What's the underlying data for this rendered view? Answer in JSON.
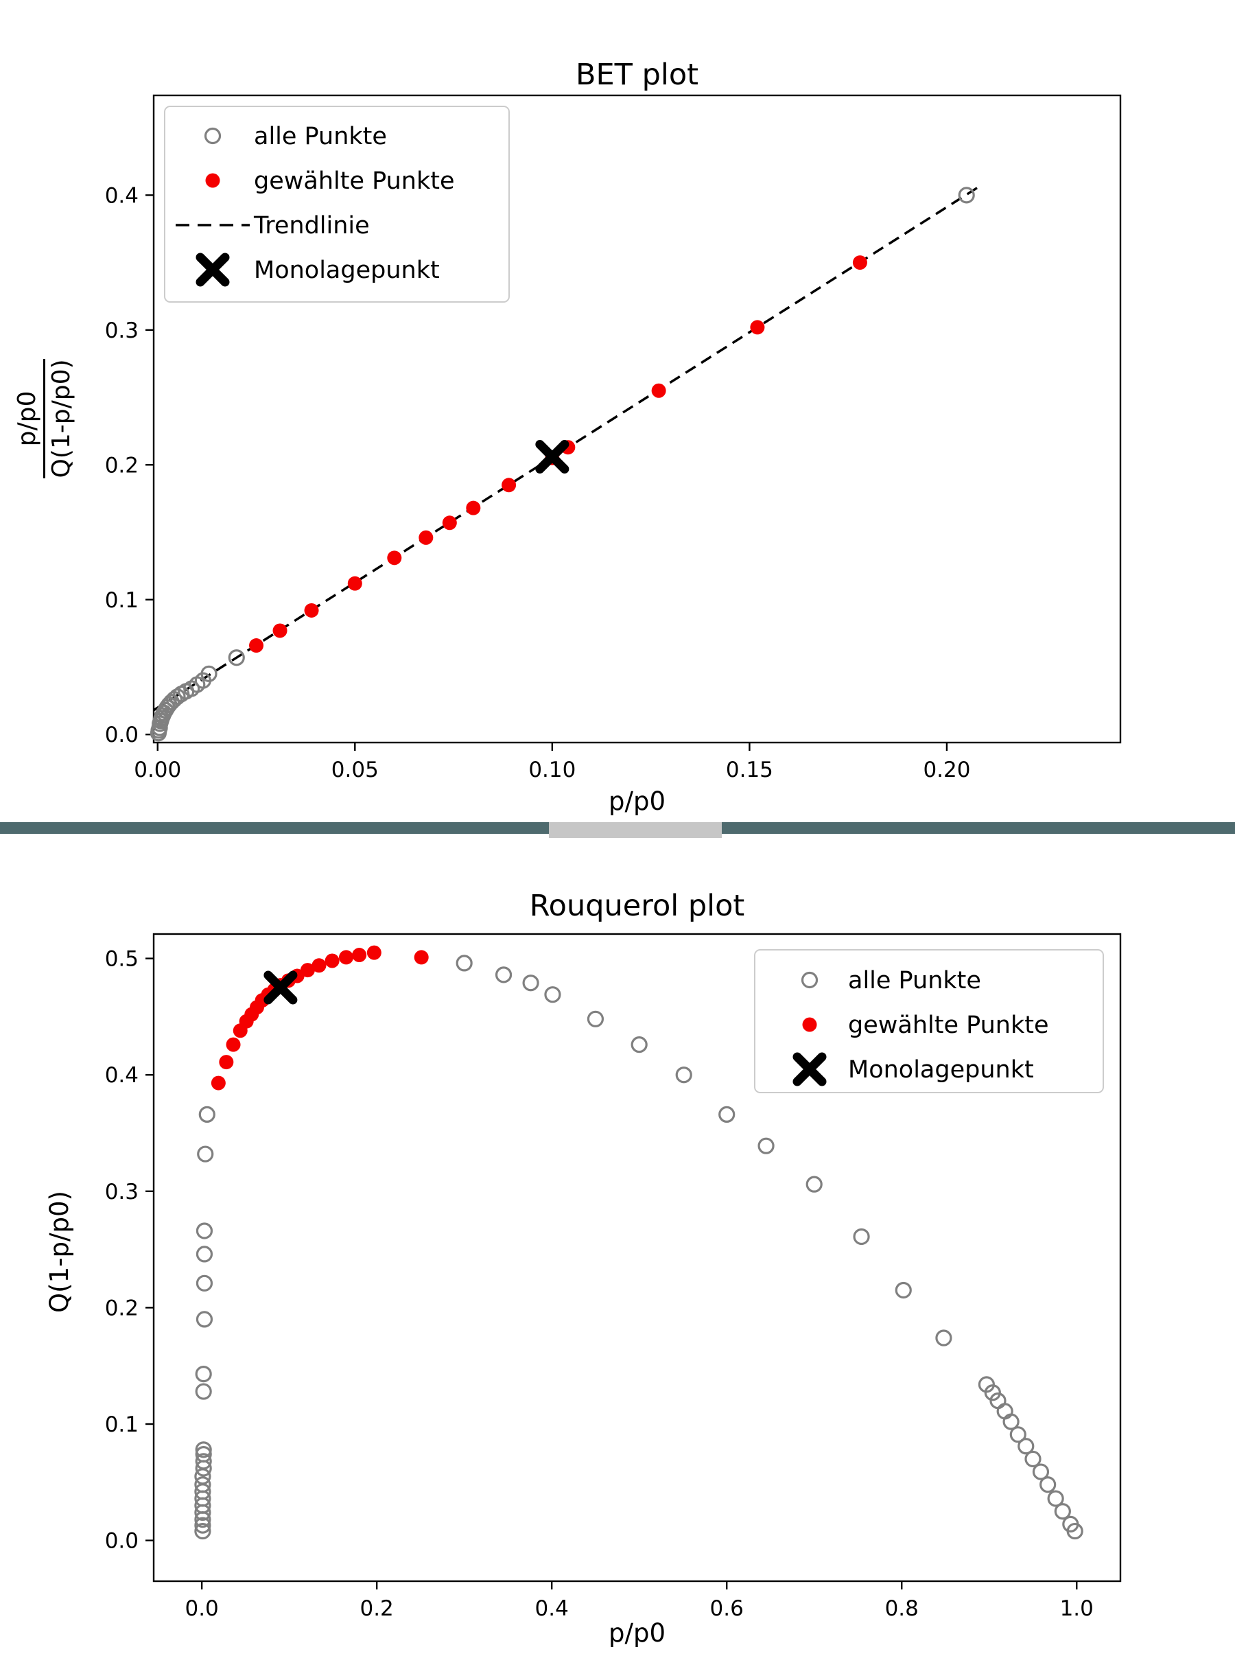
{
  "page": {
    "background": "#ffffff",
    "text_color": "#000000"
  },
  "divider": {
    "color": "#4e6a6e",
    "handle_color": "#c6c6c6"
  },
  "chart_data": [
    {
      "type": "scatter",
      "title": "BET plot",
      "xlabel": "p/p0",
      "ylabel": {
        "numerator": "p/p0",
        "denominator": "Q(1-p/p0)"
      },
      "xlim": [
        -0.001,
        0.244
      ],
      "ylim": [
        -0.006,
        0.474
      ],
      "xticks": [
        "0.00",
        "0.05",
        "0.10",
        "0.15",
        "0.20"
      ],
      "xtick_values": [
        0,
        0.05,
        0.1,
        0.15,
        0.2
      ],
      "yticks": [
        "0.0",
        "0.1",
        "0.2",
        "0.3",
        "0.4"
      ],
      "ytick_values": [
        0,
        0.1,
        0.2,
        0.3,
        0.4
      ],
      "grid": false,
      "legend_position": "upper-left",
      "series": [
        {
          "name": "alle Punkte",
          "marker": "open-circle",
          "color": "#808080",
          "points": [
            [
              0.0002,
              0.001
            ],
            [
              0.0003,
              0.003
            ],
            [
              0.0005,
              0.005
            ],
            [
              0.0006,
              0.008
            ],
            [
              0.0008,
              0.01
            ],
            [
              0.001,
              0.012
            ],
            [
              0.0013,
              0.014
            ],
            [
              0.0016,
              0.016
            ],
            [
              0.002,
              0.018
            ],
            [
              0.0024,
              0.02
            ],
            [
              0.0029,
              0.022
            ],
            [
              0.0035,
              0.024
            ],
            [
              0.0042,
              0.026
            ],
            [
              0.005,
              0.028
            ],
            [
              0.006,
              0.03
            ],
            [
              0.0072,
              0.032
            ],
            [
              0.0086,
              0.034
            ],
            [
              0.01,
              0.037
            ],
            [
              0.0115,
              0.04
            ],
            [
              0.013,
              0.045
            ],
            [
              0.02,
              0.057
            ],
            [
              0.205,
              0.4
            ]
          ]
        },
        {
          "name": "gewählte Punkte",
          "marker": "filled-circle",
          "color": "#f40000",
          "points": [
            [
              0.025,
              0.066
            ],
            [
              0.031,
              0.077
            ],
            [
              0.039,
              0.092
            ],
            [
              0.05,
              0.112
            ],
            [
              0.06,
              0.131
            ],
            [
              0.068,
              0.146
            ],
            [
              0.074,
              0.157
            ],
            [
              0.08,
              0.168
            ],
            [
              0.089,
              0.185
            ],
            [
              0.1,
              0.205
            ],
            [
              0.104,
              0.213
            ],
            [
              0.127,
              0.255
            ],
            [
              0.152,
              0.302
            ],
            [
              0.178,
              0.35
            ]
          ]
        },
        {
          "name": "Trendlinie",
          "marker": "dashed-line",
          "color": "#000000",
          "points": [
            [
              -0.001,
              0.018
            ],
            [
              0.208,
              0.406
            ]
          ]
        },
        {
          "name": "Monolagepunkt",
          "marker": "x-cross",
          "color": "#000000",
          "points": [
            [
              0.1,
              0.206
            ]
          ]
        }
      ]
    },
    {
      "type": "scatter",
      "title": "Rouquerol plot",
      "xlabel": "p/p0",
      "ylabel": {
        "text": "Q(1-p/p0)"
      },
      "xlim": [
        -0.055,
        1.05
      ],
      "ylim": [
        -0.035,
        0.521
      ],
      "xticks": [
        "0.0",
        "0.2",
        "0.4",
        "0.6",
        "0.8",
        "1.0"
      ],
      "xtick_values": [
        0,
        0.2,
        0.4,
        0.6,
        0.8,
        1.0
      ],
      "yticks": [
        "0.0",
        "0.1",
        "0.2",
        "0.3",
        "0.4",
        "0.5"
      ],
      "ytick_values": [
        0,
        0.1,
        0.2,
        0.3,
        0.4,
        0.5
      ],
      "grid": false,
      "legend_position": "upper-right",
      "series": [
        {
          "name": "alle Punkte",
          "marker": "open-circle",
          "color": "#808080",
          "points": [
            [
              0.001,
              0.008
            ],
            [
              0.001,
              0.013
            ],
            [
              0.001,
              0.018
            ],
            [
              0.001,
              0.024
            ],
            [
              0.001,
              0.03
            ],
            [
              0.001,
              0.036
            ],
            [
              0.001,
              0.042
            ],
            [
              0.001,
              0.048
            ],
            [
              0.001,
              0.055
            ],
            [
              0.002,
              0.062
            ],
            [
              0.002,
              0.068
            ],
            [
              0.002,
              0.074
            ],
            [
              0.002,
              0.078
            ],
            [
              0.002,
              0.128
            ],
            [
              0.002,
              0.143
            ],
            [
              0.003,
              0.19
            ],
            [
              0.003,
              0.221
            ],
            [
              0.003,
              0.246
            ],
            [
              0.003,
              0.266
            ],
            [
              0.004,
              0.332
            ],
            [
              0.006,
              0.366
            ],
            [
              0.3,
              0.496
            ],
            [
              0.345,
              0.486
            ],
            [
              0.376,
              0.479
            ],
            [
              0.401,
              0.469
            ],
            [
              0.45,
              0.448
            ],
            [
              0.5,
              0.426
            ],
            [
              0.551,
              0.4
            ],
            [
              0.6,
              0.366
            ],
            [
              0.645,
              0.339
            ],
            [
              0.7,
              0.306
            ],
            [
              0.754,
              0.261
            ],
            [
              0.802,
              0.215
            ],
            [
              0.848,
              0.174
            ],
            [
              0.897,
              0.134
            ],
            [
              0.904,
              0.127
            ],
            [
              0.91,
              0.12
            ],
            [
              0.918,
              0.111
            ],
            [
              0.925,
              0.102
            ],
            [
              0.933,
              0.091
            ],
            [
              0.942,
              0.081
            ],
            [
              0.95,
              0.07
            ],
            [
              0.959,
              0.059
            ],
            [
              0.967,
              0.048
            ],
            [
              0.976,
              0.036
            ],
            [
              0.984,
              0.025
            ],
            [
              0.993,
              0.014
            ],
            [
              0.998,
              0.008
            ]
          ]
        },
        {
          "name": "gewählte Punkte",
          "marker": "filled-circle",
          "color": "#f40000",
          "points": [
            [
              0.019,
              0.393
            ],
            [
              0.028,
              0.411
            ],
            [
              0.036,
              0.426
            ],
            [
              0.044,
              0.438
            ],
            [
              0.051,
              0.446
            ],
            [
              0.057,
              0.452
            ],
            [
              0.063,
              0.458
            ],
            [
              0.069,
              0.464
            ],
            [
              0.076,
              0.469
            ],
            [
              0.083,
              0.473
            ],
            [
              0.09,
              0.477
            ],
            [
              0.099,
              0.481
            ],
            [
              0.109,
              0.485
            ],
            [
              0.121,
              0.49
            ],
            [
              0.134,
              0.494
            ],
            [
              0.149,
              0.498
            ],
            [
              0.165,
              0.501
            ],
            [
              0.18,
              0.503
            ],
            [
              0.197,
              0.505
            ],
            [
              0.251,
              0.501
            ]
          ]
        },
        {
          "name": "Monolagepunkt",
          "marker": "x-cross",
          "color": "#000000",
          "points": [
            [
              0.09,
              0.475
            ]
          ]
        }
      ]
    }
  ]
}
